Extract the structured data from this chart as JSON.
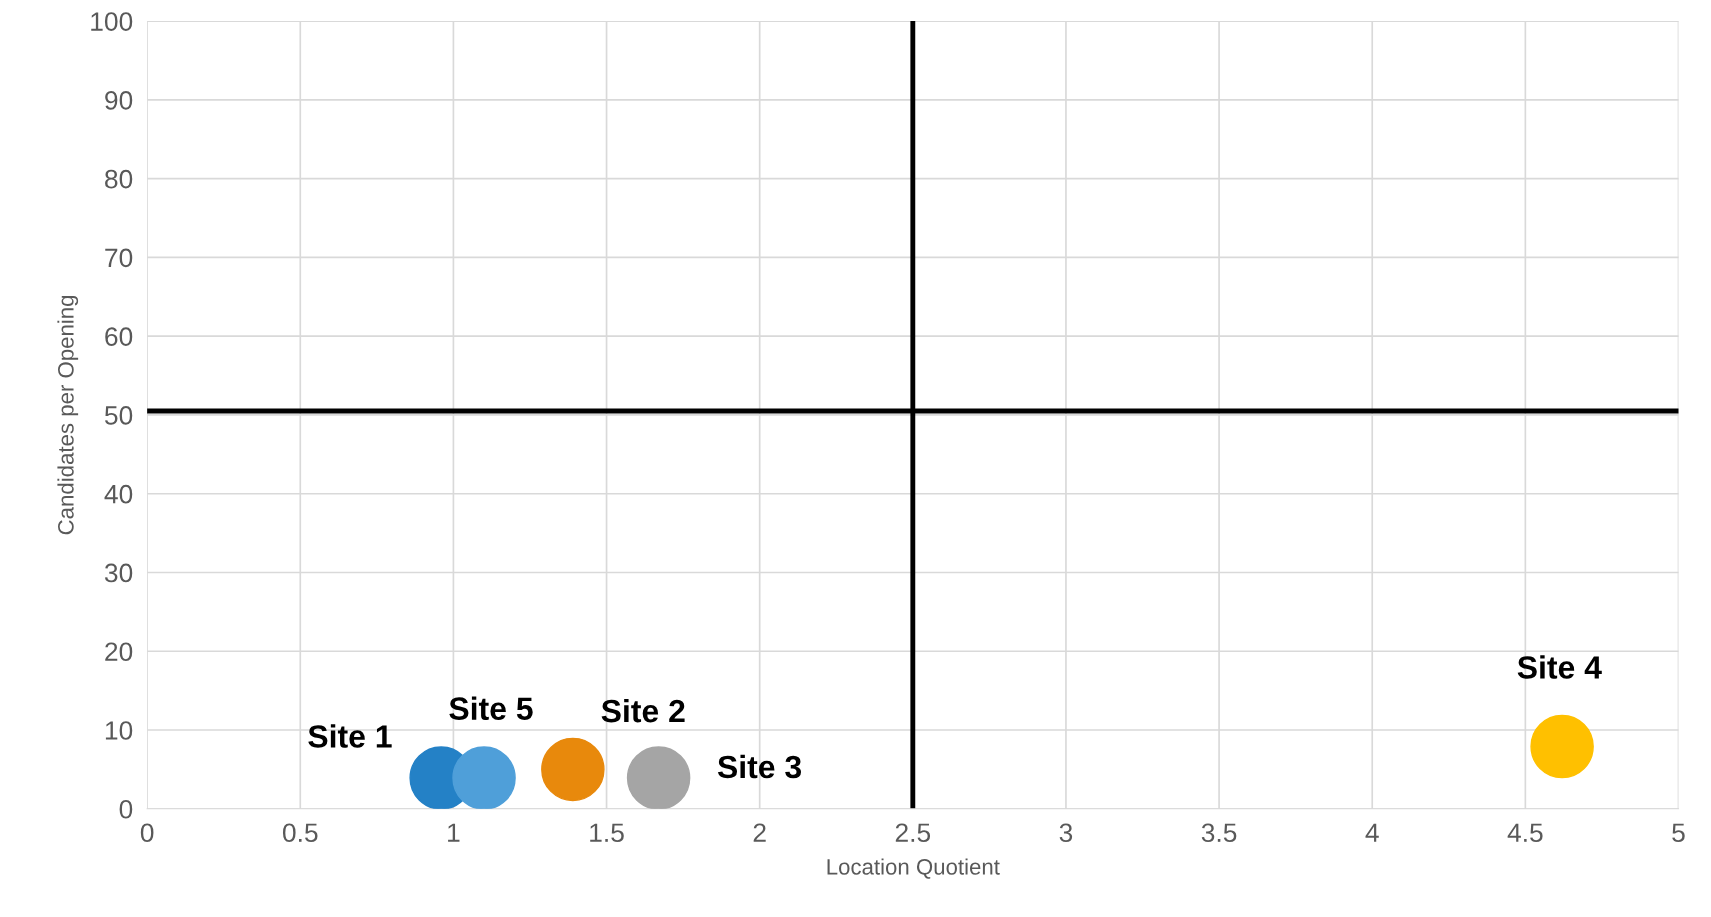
{
  "chart_data": {
    "type": "scatter",
    "xlabel": "Location Quotient",
    "ylabel": "Candidates per Opening",
    "xlim": [
      0,
      5
    ],
    "xticks": [
      0,
      0.5,
      1,
      1.5,
      2,
      2.5,
      3,
      3.5,
      4,
      4.5,
      5
    ],
    "ylim": [
      0,
      100
    ],
    "yticks": [
      0,
      10,
      20,
      30,
      40,
      50,
      60,
      70,
      80,
      90,
      100
    ],
    "grid": true,
    "legend": false,
    "marker": "circle",
    "series": [
      {
        "name": "Site 1",
        "color": "#2481c6",
        "x": [
          0.96
        ],
        "values": [
          3.9
        ]
      },
      {
        "name": "Site 5",
        "color": "#4f9fd9",
        "x": [
          1.1
        ],
        "values": [
          3.9
        ]
      },
      {
        "name": "Site 2",
        "color": "#e8890c",
        "x": [
          1.39
        ],
        "values": [
          5
        ]
      },
      {
        "name": "Site 3",
        "color": "#a5a5a5",
        "x": [
          1.67
        ],
        "values": [
          3.9
        ]
      },
      {
        "name": "Site 4",
        "color": "#ffc000",
        "x": [
          4.62
        ],
        "values": [
          7.9
        ]
      }
    ],
    "ref_lines": [
      {
        "axis": "x",
        "value": 2.5,
        "color": "#000000"
      },
      {
        "axis": "y",
        "value": 50.5,
        "color": "#000000"
      }
    ]
  }
}
